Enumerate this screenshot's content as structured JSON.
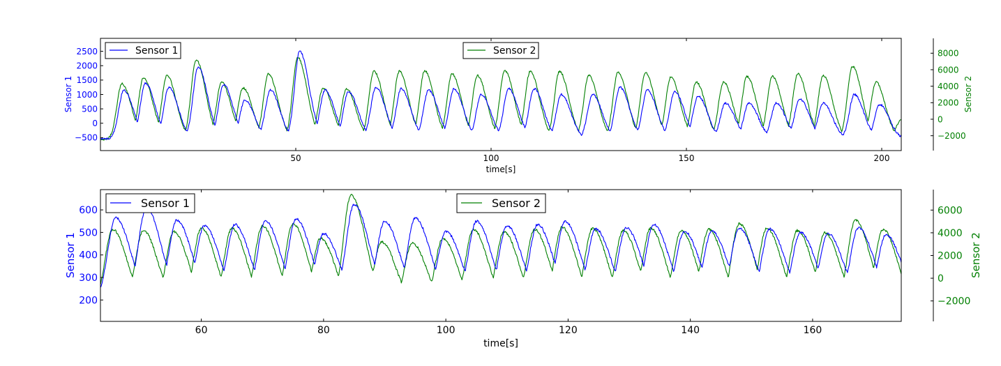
{
  "chart_data": [
    {
      "type": "line",
      "title": "",
      "xlabel": "time[s]",
      "ylabel_left": "Sensor 1",
      "ylabel_right": "Sensor 2",
      "xlim": [
        0,
        205
      ],
      "ylim_left": [
        -950,
        2950
      ],
      "ylim_right": [
        -3800,
        9800
      ],
      "xticks": [
        50,
        100,
        150,
        200
      ],
      "yticks_left": [
        -500,
        0,
        500,
        1000,
        1500,
        2000,
        2500
      ],
      "yticks_right": [
        -2000,
        0,
        2000,
        4000,
        6000,
        8000
      ],
      "colors": {
        "sensor1": "#0000ff",
        "sensor2": "#007f00",
        "left_axis_text": "#0000ff",
        "right_axis_text": "#007f00"
      },
      "legend": [
        {
          "label": "Sensor 1",
          "color": "#0000ff",
          "position": "upper-left"
        },
        {
          "label": "Sensor 2",
          "color": "#007f00",
          "position": "upper-center"
        }
      ],
      "series": [
        {
          "name": "Sensor 1",
          "axis": "left",
          "baseline": -550,
          "peaks": [
            [
              6,
              1150
            ],
            [
              11.5,
              1400
            ],
            [
              17.5,
              1250
            ],
            [
              25,
              1950
            ],
            [
              31.5,
              1350
            ],
            [
              37,
              800
            ],
            [
              43.5,
              1150
            ],
            [
              51,
              2500
            ],
            [
              57.5,
              1150
            ],
            [
              63.5,
              1100
            ],
            [
              70.5,
              1250
            ],
            [
              77,
              1200
            ],
            [
              84,
              1150
            ],
            [
              90.5,
              1200
            ],
            [
              97.5,
              1000
            ],
            [
              104.5,
              1200
            ],
            [
              111,
              1200
            ],
            [
              118,
              1000
            ],
            [
              126,
              1000
            ],
            [
              133,
              1250
            ],
            [
              140,
              1150
            ],
            [
              147,
              1100
            ],
            [
              153,
              950
            ],
            [
              160,
              700
            ],
            [
              166,
              700
            ],
            [
              173,
              700
            ],
            [
              179,
              850
            ],
            [
              185,
              700
            ],
            [
              193,
              1000
            ],
            [
              199.5,
              650
            ],
            [
              205,
              -650
            ]
          ]
        },
        {
          "name": "Sensor 2",
          "axis": "right",
          "baseline": -2500,
          "peaks": [
            [
              5.5,
              4300
            ],
            [
              11,
              5000
            ],
            [
              17,
              5300
            ],
            [
              24.5,
              7200
            ],
            [
              31,
              4500
            ],
            [
              36.5,
              3800
            ],
            [
              43,
              5500
            ],
            [
              50.5,
              7500
            ],
            [
              57,
              3800
            ],
            [
              63,
              3700
            ],
            [
              70,
              5800
            ],
            [
              76.5,
              5800
            ],
            [
              83,
              5900
            ],
            [
              90,
              5500
            ],
            [
              96.5,
              5300
            ],
            [
              103.5,
              5900
            ],
            [
              110,
              5800
            ],
            [
              117.5,
              5800
            ],
            [
              125,
              5300
            ],
            [
              132.5,
              5700
            ],
            [
              139.5,
              5600
            ],
            [
              146,
              5100
            ],
            [
              152.5,
              4500
            ],
            [
              159.5,
              4500
            ],
            [
              165.5,
              5200
            ],
            [
              172,
              5200
            ],
            [
              178.5,
              5500
            ],
            [
              185,
              5300
            ],
            [
              192.5,
              6400
            ],
            [
              198.5,
              4500
            ],
            [
              205,
              0
            ]
          ]
        }
      ]
    },
    {
      "type": "line",
      "title": "",
      "xlabel": "time[s]",
      "ylabel_left": "Sensor 1",
      "ylabel_right": "Sensor 2",
      "xlim": [
        43.5,
        174.5
      ],
      "ylim_left": [
        105,
        690
      ],
      "ylim_right": [
        -3800,
        7800
      ],
      "xticks": [
        60,
        80,
        100,
        120,
        140,
        160
      ],
      "yticks_left": [
        200,
        300,
        400,
        500,
        600
      ],
      "yticks_right": [
        -2000,
        0,
        2000,
        4000,
        6000
      ],
      "colors": {
        "sensor1": "#0000ff",
        "sensor2": "#007f00",
        "left_axis_text": "#0000ff",
        "right_axis_text": "#007f00"
      },
      "legend": [
        {
          "label": "Sensor 1",
          "color": "#0000ff",
          "position": "upper-left"
        },
        {
          "label": "Sensor 2",
          "color": "#007f00",
          "position": "upper-center"
        }
      ],
      "series": [
        {
          "name": "Sensor 1",
          "axis": "left",
          "baseline": 195,
          "peaks": [
            [
              46,
              565
            ],
            [
              51,
              610
            ],
            [
              56,
              555
            ],
            [
              60.5,
              530
            ],
            [
              65.5,
              535
            ],
            [
              70.5,
              550
            ],
            [
              75.5,
              560
            ],
            [
              80,
              495
            ],
            [
              85,
              625
            ],
            [
              90,
              550
            ],
            [
              95,
              565
            ],
            [
              100,
              505
            ],
            [
              105,
              550
            ],
            [
              110,
              530
            ],
            [
              115,
              535
            ],
            [
              119.5,
              550
            ],
            [
              124.5,
              515
            ],
            [
              129.5,
              520
            ],
            [
              134,
              535
            ],
            [
              139,
              505
            ],
            [
              143.5,
              505
            ],
            [
              148,
              520
            ],
            [
              153,
              515
            ],
            [
              158,
              500
            ],
            [
              162.5,
              495
            ],
            [
              167.5,
              520
            ],
            [
              172,
              490
            ]
          ]
        },
        {
          "name": "Sensor 2",
          "axis": "right",
          "baseline": -2800,
          "peaks": [
            [
              45.5,
              4300
            ],
            [
              50.5,
              4200
            ],
            [
              55.5,
              4100
            ],
            [
              60,
              4400
            ],
            [
              65,
              4400
            ],
            [
              70,
              4600
            ],
            [
              75,
              4800
            ],
            [
              79.5,
              3500
            ],
            [
              84.5,
              7300
            ],
            [
              89.5,
              3200
            ],
            [
              94.5,
              3100
            ],
            [
              99.5,
              3500
            ],
            [
              104.5,
              4300
            ],
            [
              109.5,
              4100
            ],
            [
              114.5,
              4300
            ],
            [
              119,
              4500
            ],
            [
              124,
              4400
            ],
            [
              129,
              4200
            ],
            [
              133.5,
              4400
            ],
            [
              138.5,
              4200
            ],
            [
              143,
              4300
            ],
            [
              148,
              4800
            ],
            [
              152.5,
              4400
            ],
            [
              157.5,
              4200
            ],
            [
              162,
              4000
            ],
            [
              167,
              5100
            ],
            [
              171.5,
              4300
            ]
          ]
        }
      ]
    }
  ]
}
